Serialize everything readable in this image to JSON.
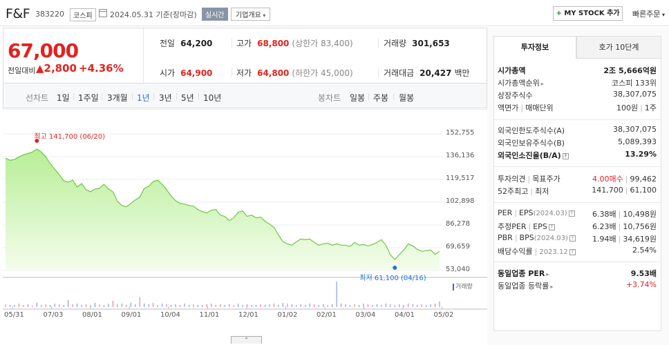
{
  "header": {
    "name": "F&F",
    "code": "383220",
    "market": "코스피",
    "date": "2024.05.31 기준(장마감)",
    "realtime": "실시간",
    "company_info": "기업개요",
    "mystock_label": "MY STOCK 추가",
    "quick_order": "빠른주문"
  },
  "price": {
    "current": "67,000",
    "change_label": "전일대비",
    "change": "2,800",
    "change_rate": "+4.36%"
  },
  "stats": {
    "prev_label": "전일",
    "prev": "64,200",
    "high_label": "고가",
    "high": "68,800",
    "upper_limit": "(상한가 83,400)",
    "volume_label": "거래량",
    "volume": "301,653",
    "open_label": "시가",
    "open": "64,900",
    "low_label": "저가",
    "low": "64,800",
    "lower_limit": "(하한가 45,000)",
    "amount_label": "거래대금",
    "amount": "20,427",
    "amount_unit": "백만"
  },
  "periods": {
    "line_label": "선차트",
    "line": [
      "1일",
      "1주일",
      "3개월",
      "1년",
      "3년",
      "5년",
      "10년"
    ],
    "selected": "1년",
    "candle_label": "봉차트",
    "candle": [
      "일봉",
      "주봉",
      "월봉"
    ]
  },
  "chart_data": {
    "type": "area",
    "title": "",
    "xlabel": "",
    "ylabel": "",
    "ylim": [
      53040,
      152755
    ],
    "y_ticks": [
      "152,755",
      "136,136",
      "119,517",
      "102,898",
      "86,278",
      "69,659",
      "53,040"
    ],
    "x_ticks": [
      "05/31",
      "07/03",
      "08/01",
      "09/01",
      "10/04",
      "11/01",
      "12/01",
      "01/02",
      "02/01",
      "03/04",
      "04/01",
      "05/02"
    ],
    "high_label": "최고 141,700 (06/20)",
    "low_label": "최저 61,100 (04/16)",
    "volume_label": "거래량",
    "series": [
      {
        "values": [
          135000,
          133500,
          134000,
          136000,
          137500,
          138500,
          139500,
          141700,
          139500,
          136000,
          131000,
          127000,
          123000,
          118500,
          117500,
          119000,
          114000,
          116500,
          112000,
          110500,
          112500,
          113000,
          116000,
          112500,
          110500,
          103500,
          100500,
          99500,
          102000,
          104500,
          106500,
          113000,
          114500,
          118000,
          119000,
          116000,
          112000,
          107500,
          104000,
          102000,
          101500,
          100500,
          100000,
          97500,
          96000,
          95000,
          97000,
          97500,
          93500,
          92500,
          89500,
          91500,
          95500,
          96500,
          92500,
          93500,
          91500,
          92000,
          89000,
          87000,
          84500,
          79000,
          74000,
          72500,
          71500,
          74000,
          76000,
          75500,
          76000,
          73500,
          71500,
          72500,
          73000,
          71500,
          72500,
          71500,
          71500,
          70500,
          73500,
          71500,
          72000,
          71000,
          72000,
          73500,
          75500,
          71500,
          64500,
          61100,
          64500,
          68000,
          72500,
          71000,
          68500,
          67000,
          67500,
          68000,
          64800,
          67000
        ]
      }
    ],
    "volume": [
      4,
      3,
      3,
      5,
      3,
      4,
      2,
      6,
      3,
      4,
      3,
      5,
      4,
      3,
      10,
      4,
      5,
      3,
      4,
      3,
      6,
      4,
      3,
      5,
      9,
      4,
      5,
      3,
      6,
      4,
      14,
      5,
      4,
      6,
      3,
      5,
      4,
      3,
      4,
      3,
      5,
      3,
      4,
      3,
      3,
      4,
      5,
      3,
      4,
      3,
      4,
      3,
      5,
      3,
      4,
      3,
      3,
      4,
      3,
      4,
      5,
      3,
      6,
      5,
      4,
      3,
      4,
      3,
      5,
      4,
      3,
      4,
      3,
      4,
      36,
      5,
      4,
      3,
      4,
      3,
      5,
      4,
      3,
      4,
      3,
      5,
      4,
      3,
      4,
      3,
      5,
      4,
      3,
      4,
      3,
      4,
      5,
      8
    ]
  },
  "right_panel": {
    "tab_active": "투자정보",
    "tab_other": "호가 10단계",
    "market_cap_label": "시가총액",
    "market_cap": "2조 5,666억원",
    "cap_rank_label": "시가총액순위",
    "cap_rank": "코스피 133위",
    "listed_shares_label": "상장주식수",
    "listed_shares": "38,307,075",
    "par_label": "액면가",
    "unit_label": "매매단위",
    "par": "100원",
    "unit": "1주",
    "foreign_limit_label": "외국인한도주식수(A)",
    "foreign_limit": "38,307,075",
    "foreign_hold_label": "외국인보유주식수(B)",
    "foreign_hold": "5,089,393",
    "foreign_ratio_label": "외국인소진율(B/A)",
    "foreign_ratio": "13.29%",
    "opinion_label": "투자의견",
    "target_label": "목표주가",
    "opinion": "4.00매수",
    "target": "99,462",
    "week52_label": "52주최고",
    "week52_low_label": "최저",
    "week52_high": "141,700",
    "week52_low": "61,100",
    "per_label": "PER",
    "eps_label": "EPS",
    "eps_period": "(2024.03)",
    "per": "6.38배",
    "eps": "10,498원",
    "est_per_label": "추정PER",
    "est_eps_label": "EPS",
    "est_per": "6.23배",
    "est_eps": "10,756원",
    "pbr_label": "PBR",
    "bps_label": "BPS",
    "bps_period": "(2024.03)",
    "pbr": "1.94배",
    "bps": "34,619원",
    "div_label": "배당수익률",
    "div_period": "2023.12",
    "div": "2.54%",
    "sector_per_label": "동일업종 PER",
    "sector_per": "9.53배",
    "sector_rate_label": "동일업종 등락률",
    "sector_rate": "+3.74%"
  }
}
